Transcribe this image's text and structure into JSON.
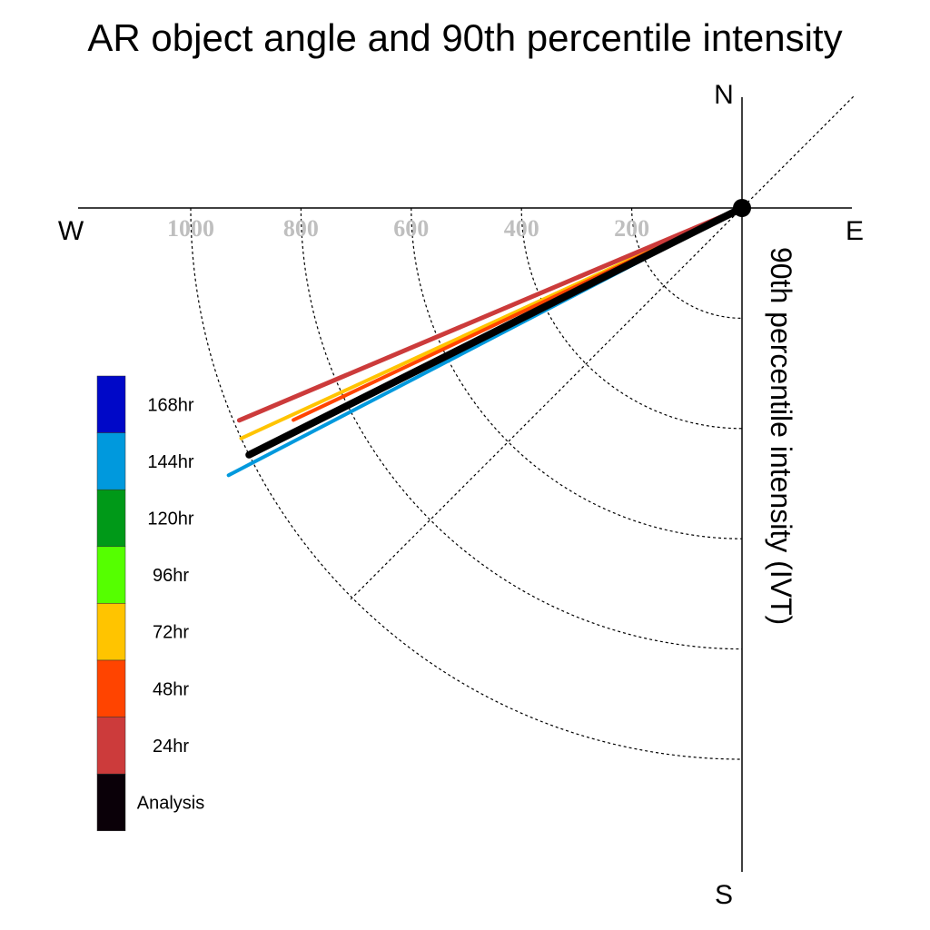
{
  "chart_data": {
    "type": "polar-line",
    "title": "AR object angle and 90th percentile intensity",
    "radial_label": "90th percentile intensity (IVT)",
    "compass": {
      "north": "N",
      "south": "S",
      "east": "E",
      "west": "W"
    },
    "radial_ticks": [
      200,
      400,
      600,
      800,
      1000
    ],
    "radial_tick_labels": [
      "200",
      "400",
      "600",
      "800",
      "1000"
    ],
    "radial_range": [
      0,
      1200
    ],
    "grid": true,
    "legend_position": "left",
    "series": [
      {
        "name": "144hr",
        "color": "#0099dd",
        "bearing_deg": 242.5,
        "intensity": 1050,
        "line_width": 4
      },
      {
        "name": "72hr",
        "color": "#ffc400",
        "bearing_deg": 245.3,
        "intensity": 1000,
        "line_width": 4
      },
      {
        "name": "48hr",
        "color": "#ff4400",
        "bearing_deg": 244.7,
        "intensity": 900,
        "line_width": 4
      },
      {
        "name": "24hr",
        "color": "#cc3b3b",
        "bearing_deg": 247.1,
        "intensity": 990,
        "line_width": 5
      },
      {
        "name": "Analysis",
        "color": "#000000",
        "bearing_deg": 243.4,
        "intensity": 1000,
        "line_width": 8
      }
    ],
    "legend": [
      {
        "label": "168hr",
        "color": "#0008c8"
      },
      {
        "label": "144hr",
        "color": "#0099dd"
      },
      {
        "label": "120hr",
        "color": "#009918"
      },
      {
        "label": "96hr",
        "color": "#55ff00"
      },
      {
        "label": "72hr",
        "color": "#ffc400"
      },
      {
        "label": "48hr",
        "color": "#ff4400"
      },
      {
        "label": "24hr",
        "color": "#cc3b3b"
      },
      {
        "label": "Analysis",
        "color": "#0a0008"
      }
    ]
  }
}
